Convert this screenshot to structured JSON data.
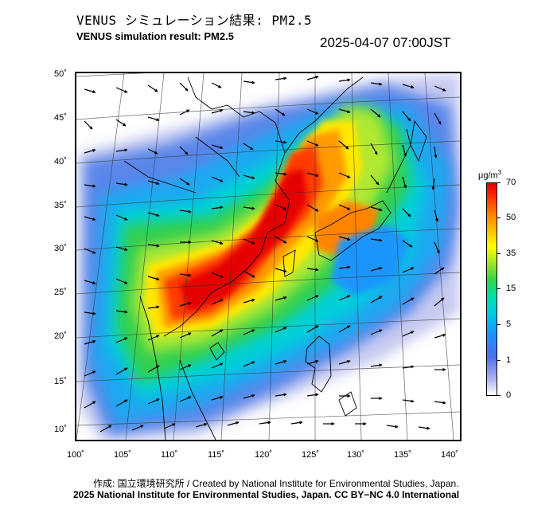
{
  "header": {
    "title_jp": "VENUS シミュレーション結果: PM2.5",
    "title_en": "VENUS simulation result: PM2.5",
    "timestamp": "2025-04-07 07:00JST"
  },
  "map": {
    "lat_labels": [
      "50˚",
      "45˚",
      "40˚",
      "35˚",
      "30˚",
      "25˚",
      "20˚",
      "15˚",
      "10˚"
    ],
    "lon_labels": [
      "100˚",
      "105˚",
      "110˚",
      "115˚",
      "120˚",
      "125˚",
      "130˚",
      "135˚",
      "140˚"
    ],
    "region": "East Asia",
    "overlay": "PM2.5 concentration with wind vectors"
  },
  "legend": {
    "unit": "μg/m",
    "unit_exp": "3",
    "labels": [
      "70",
      "50",
      "35",
      "15",
      "5",
      "1",
      "0"
    ]
  },
  "footer": {
    "credit_line1": "作成: 国立環境研究所 / Created by National Institute for Environmental Studies, Japan.",
    "credit_line2": "2025 National Institute for Environmental Studies, Japan. CC BY−NC 4.0 International"
  }
}
